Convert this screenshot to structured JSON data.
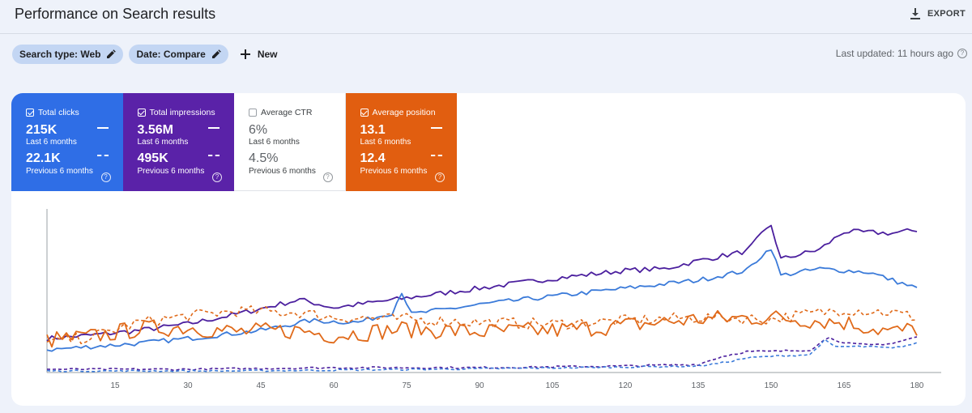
{
  "header": {
    "title": "Performance on Search results",
    "export_label": "EXPORT"
  },
  "filters": {
    "chips": [
      {
        "label": "Search type: Web"
      },
      {
        "label": "Date: Compare"
      }
    ],
    "new_label": "New",
    "last_updated": "Last updated: 11 hours ago"
  },
  "metrics": [
    {
      "label": "Total clicks",
      "checked": true,
      "current": "215K",
      "current_period": "Last 6 months",
      "previous": "22.1K",
      "previous_period": "Previous 6 months",
      "color": "#2f6ee6"
    },
    {
      "label": "Total impressions",
      "checked": true,
      "current": "3.56M",
      "current_period": "Last 6 months",
      "previous": "495K",
      "previous_period": "Previous 6 months",
      "color": "#5a22a8"
    },
    {
      "label": "Average CTR",
      "checked": false,
      "current": "6%",
      "current_period": "Last 6 months",
      "previous": "4.5%",
      "previous_period": "Previous 6 months",
      "color": "#ffffff"
    },
    {
      "label": "Average position",
      "checked": true,
      "current": "13.1",
      "current_period": "Last 6 months",
      "previous": "12.4",
      "previous_period": "Previous 6 months",
      "color": "#e15e10"
    }
  ],
  "chart_data": {
    "type": "line",
    "x_ticks": [
      "15",
      "30",
      "45",
      "60",
      "75",
      "90",
      "105",
      "120",
      "135",
      "150",
      "165",
      "180"
    ],
    "x_range": [
      1,
      183
    ],
    "y_range": [
      0,
      100
    ],
    "y_axis_visible": false,
    "series": [
      {
        "name": "Total impressions (Last 6 months)",
        "color": "#4b1f9e",
        "style": "solid",
        "points": [
          [
            1,
            21
          ],
          [
            10,
            23
          ],
          [
            20,
            26
          ],
          [
            30,
            30
          ],
          [
            40,
            36
          ],
          [
            53,
            45
          ],
          [
            60,
            40
          ],
          [
            75,
            46
          ],
          [
            90,
            52
          ],
          [
            105,
            58
          ],
          [
            120,
            63
          ],
          [
            128,
            64
          ],
          [
            135,
            69
          ],
          [
            145,
            75
          ],
          [
            148,
            85
          ],
          [
            150,
            91
          ],
          [
            152,
            70
          ],
          [
            160,
            76
          ],
          [
            165,
            87
          ],
          [
            175,
            86
          ],
          [
            180,
            88
          ]
        ]
      },
      {
        "name": "Total clicks (Last 6 months)",
        "color": "#3a7ad9",
        "style": "solid",
        "points": [
          [
            1,
            14
          ],
          [
            10,
            16
          ],
          [
            20,
            18
          ],
          [
            30,
            21
          ],
          [
            45,
            26
          ],
          [
            55,
            32
          ],
          [
            65,
            31
          ],
          [
            72,
            37
          ],
          [
            74,
            50
          ],
          [
            76,
            36
          ],
          [
            90,
            42
          ],
          [
            105,
            47
          ],
          [
            120,
            52
          ],
          [
            135,
            57
          ],
          [
            145,
            63
          ],
          [
            148,
            72
          ],
          [
            150,
            77
          ],
          [
            152,
            60
          ],
          [
            160,
            64
          ],
          [
            170,
            62
          ],
          [
            180,
            52
          ]
        ]
      },
      {
        "name": "Average position (Last 6 months)",
        "color": "#e06a1a",
        "style": "solid",
        "points": [
          [
            1,
            20
          ],
          [
            10,
            22
          ],
          [
            20,
            27
          ],
          [
            30,
            28
          ],
          [
            40,
            25
          ],
          [
            53,
            26
          ],
          [
            60,
            23
          ],
          [
            75,
            27
          ],
          [
            90,
            25
          ],
          [
            105,
            26
          ],
          [
            120,
            29
          ],
          [
            135,
            33
          ],
          [
            150,
            34
          ],
          [
            165,
            31
          ],
          [
            175,
            25
          ],
          [
            180,
            27
          ]
        ]
      },
      {
        "name": "Average position (Previous 6 months)",
        "color": "#e06a1a",
        "style": "dashed",
        "points": [
          [
            1,
            18
          ],
          [
            10,
            22
          ],
          [
            20,
            31
          ],
          [
            30,
            35
          ],
          [
            40,
            38
          ],
          [
            53,
            37
          ],
          [
            60,
            34
          ],
          [
            75,
            33
          ],
          [
            90,
            31
          ],
          [
            105,
            30
          ],
          [
            120,
            32
          ],
          [
            135,
            34
          ],
          [
            150,
            33
          ],
          [
            165,
            39
          ],
          [
            175,
            37
          ],
          [
            180,
            34
          ]
        ]
      },
      {
        "name": "Total impressions (Previous 6 months)",
        "color": "#4b1f9e",
        "style": "dashed",
        "points": [
          [
            1,
            2
          ],
          [
            30,
            2
          ],
          [
            60,
            3
          ],
          [
            90,
            3
          ],
          [
            120,
            4
          ],
          [
            135,
            5
          ],
          [
            140,
            10
          ],
          [
            145,
            13
          ],
          [
            150,
            13
          ],
          [
            158,
            14
          ],
          [
            162,
            22
          ],
          [
            165,
            18
          ],
          [
            170,
            17
          ],
          [
            175,
            18
          ],
          [
            180,
            22
          ]
        ]
      },
      {
        "name": "Total clicks (Previous 6 months)",
        "color": "#3a7ad9",
        "style": "dashed",
        "points": [
          [
            1,
            1
          ],
          [
            40,
            1
          ],
          [
            80,
            2
          ],
          [
            110,
            3
          ],
          [
            135,
            4
          ],
          [
            140,
            6
          ],
          [
            145,
            9
          ],
          [
            150,
            10
          ],
          [
            158,
            11
          ],
          [
            161,
            20
          ],
          [
            163,
            16
          ],
          [
            170,
            16
          ],
          [
            175,
            15
          ],
          [
            180,
            18
          ]
        ]
      }
    ]
  }
}
